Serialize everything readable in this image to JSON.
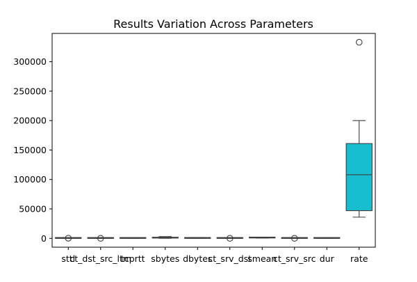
{
  "chart_data": {
    "type": "box",
    "title": "Results Variation Across Parameters",
    "xlabel": "",
    "ylabel": "",
    "ylim": [
      -15000,
      348000
    ],
    "yticks": [
      0,
      50000,
      100000,
      150000,
      200000,
      250000,
      300000
    ],
    "grid": false,
    "legend": "none",
    "categories": [
      "sttl",
      "ct_dst_src_ltm",
      "tcprtt",
      "sbytes",
      "dbytes",
      "ct_srv_dst",
      "smean",
      "ct_srv_src",
      "dur",
      "rate"
    ],
    "boxes": [
      {
        "name": "sttl",
        "whisker_low": 0,
        "q1": 0,
        "median": 60,
        "q3": 250,
        "whisker_high": 255,
        "outliers": [
          255
        ],
        "color": "#1f77b4"
      },
      {
        "name": "ct_dst_src_ltm",
        "whisker_low": 0,
        "q1": 1,
        "median": 2,
        "q3": 8,
        "whisker_high": 20,
        "outliers": [
          60
        ],
        "color": "#ff7f0e"
      },
      {
        "name": "tcprtt",
        "whisker_low": 0,
        "q1": 0,
        "median": 0,
        "q3": 0,
        "whisker_high": 0,
        "outliers": [],
        "color": "#2ca02c"
      },
      {
        "name": "sbytes",
        "whisker_low": 200,
        "q1": 500,
        "median": 900,
        "q3": 1800,
        "whisker_high": 3000,
        "outliers": [],
        "color": "#d62728"
      },
      {
        "name": "dbytes",
        "whisker_low": 0,
        "q1": 0,
        "median": 200,
        "q3": 900,
        "whisker_high": 1500,
        "outliers": [],
        "color": "#9467bd"
      },
      {
        "name": "ct_srv_dst",
        "whisker_low": 0,
        "q1": 1,
        "median": 3,
        "q3": 10,
        "whisker_high": 25,
        "outliers": [
          60
        ],
        "color": "#8c564b"
      },
      {
        "name": "smean",
        "whisker_low": 400,
        "q1": 700,
        "median": 900,
        "q3": 1300,
        "whisker_high": 1700,
        "outliers": [],
        "color": "#e377c2"
      },
      {
        "name": "ct_srv_src",
        "whisker_low": 0,
        "q1": 1,
        "median": 3,
        "q3": 10,
        "whisker_high": 25,
        "outliers": [
          60
        ],
        "color": "#7f7f7f"
      },
      {
        "name": "dur",
        "whisker_low": 0,
        "q1": 0,
        "median": 0,
        "q3": 1,
        "whisker_high": 2,
        "outliers": [],
        "color": "#bcbd22"
      },
      {
        "name": "rate",
        "whisker_low": 36000,
        "q1": 47000,
        "median": 108000,
        "q3": 161000,
        "whisker_high": 200000,
        "outliers": [
          333000
        ],
        "color": "#17becf"
      }
    ]
  }
}
